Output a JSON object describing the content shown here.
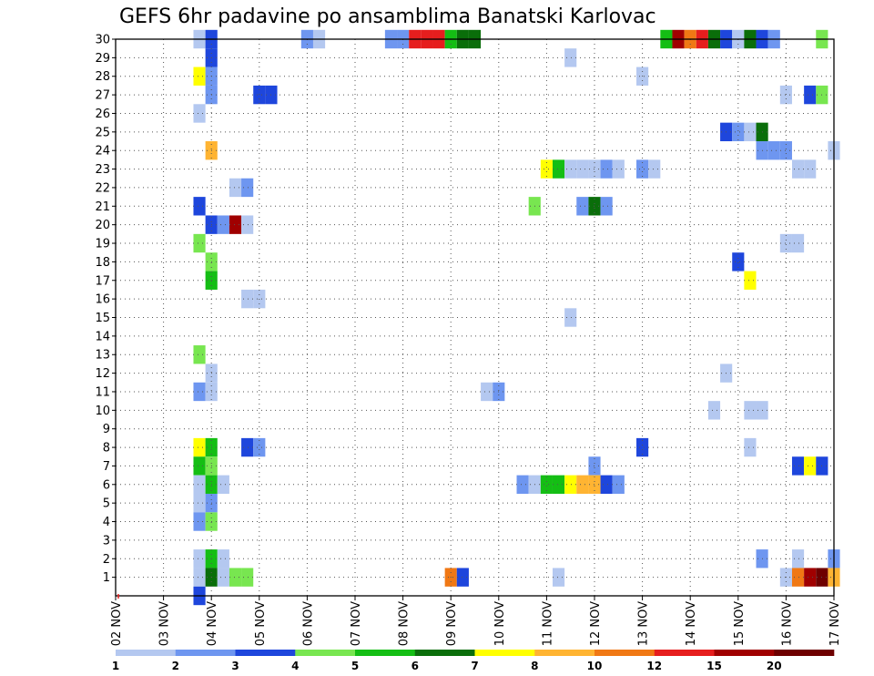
{
  "chart_data": {
    "type": "heatmap",
    "title": "GEFS 6hr padavine po ansamblima Banatski Karlovac",
    "xlabel": "",
    "ylabel": "",
    "x_tick_labels": [
      "02 NOV",
      "03 NOV",
      "04 NOV",
      "05 NOV",
      "06 NOV",
      "07 NOV",
      "08 NOV",
      "09 NOV",
      "10 NOV",
      "11 NOV",
      "12 NOV",
      "13 NOV",
      "14 NOV",
      "15 NOV",
      "16 NOV",
      "17 NOV"
    ],
    "y_tick_labels": [
      "1",
      "2",
      "3",
      "4",
      "5",
      "6",
      "7",
      "8",
      "9",
      "10",
      "11",
      "12",
      "13",
      "14",
      "15",
      "16",
      "17",
      "18",
      "19",
      "20",
      "21",
      "22",
      "23",
      "24",
      "25",
      "26",
      "27",
      "28",
      "29",
      "30"
    ],
    "x_range_steps": [
      0,
      60
    ],
    "y_range_members": [
      0,
      30
    ],
    "steps_per_day": 4,
    "grid": true,
    "colorbar": {
      "colors": [
        "#b4c8f0",
        "#6e96f0",
        "#1e46dc",
        "#78e650",
        "#14be14",
        "#0a6e0a",
        "#ffff00",
        "#ffb432",
        "#f07814",
        "#e61e1e",
        "#a00000",
        "#6e0000"
      ],
      "tick_labels": [
        "1",
        "2",
        "3",
        "4",
        "5",
        "6",
        "7",
        "8",
        "10",
        "12",
        "15",
        "20"
      ]
    },
    "cells": [
      [
        7,
        30,
        0
      ],
      [
        8,
        30,
        2
      ],
      [
        16,
        30,
        1
      ],
      [
        17,
        30,
        0
      ],
      [
        23,
        30,
        1
      ],
      [
        24,
        30,
        1
      ],
      [
        25,
        30,
        9
      ],
      [
        26,
        30,
        9
      ],
      [
        27,
        30,
        9
      ],
      [
        28,
        30,
        4
      ],
      [
        29,
        30,
        5
      ],
      [
        30,
        30,
        5
      ],
      [
        46,
        30,
        4
      ],
      [
        47,
        30,
        10
      ],
      [
        48,
        30,
        8
      ],
      [
        49,
        30,
        9
      ],
      [
        50,
        30,
        5
      ],
      [
        51,
        30,
        2
      ],
      [
        52,
        30,
        0
      ],
      [
        53,
        30,
        5
      ],
      [
        54,
        30,
        2
      ],
      [
        55,
        30,
        1
      ],
      [
        59,
        30,
        3
      ],
      [
        8,
        29,
        2
      ],
      [
        38,
        29,
        0
      ],
      [
        7,
        28,
        6
      ],
      [
        8,
        28,
        1
      ],
      [
        44,
        28,
        0
      ],
      [
        8,
        27,
        1
      ],
      [
        12,
        27,
        2
      ],
      [
        13,
        27,
        2
      ],
      [
        56,
        27,
        0
      ],
      [
        58,
        27,
        2
      ],
      [
        59,
        27,
        3
      ],
      [
        7,
        26,
        0
      ],
      [
        51,
        25,
        2
      ],
      [
        52,
        25,
        1
      ],
      [
        53,
        25,
        0
      ],
      [
        54,
        25,
        5
      ],
      [
        8,
        24,
        7
      ],
      [
        54,
        24,
        1
      ],
      [
        55,
        24,
        1
      ],
      [
        56,
        24,
        1
      ],
      [
        60,
        24,
        0
      ],
      [
        36,
        23,
        6
      ],
      [
        37,
        23,
        4
      ],
      [
        38,
        23,
        0
      ],
      [
        39,
        23,
        0
      ],
      [
        40,
        23,
        0
      ],
      [
        41,
        23,
        1
      ],
      [
        42,
        23,
        0
      ],
      [
        44,
        23,
        1
      ],
      [
        45,
        23,
        0
      ],
      [
        57,
        23,
        0
      ],
      [
        58,
        23,
        0
      ],
      [
        10,
        22,
        0
      ],
      [
        11,
        22,
        1
      ],
      [
        35,
        21,
        3
      ],
      [
        39,
        21,
        1
      ],
      [
        40,
        21,
        5
      ],
      [
        41,
        21,
        1
      ],
      [
        7,
        21,
        2
      ],
      [
        8,
        20,
        2
      ],
      [
        9,
        20,
        1
      ],
      [
        10,
        20,
        10
      ],
      [
        11,
        20,
        0
      ],
      [
        7,
        19,
        3
      ],
      [
        56,
        19,
        0
      ],
      [
        57,
        19,
        0
      ],
      [
        8,
        18,
        3
      ],
      [
        52,
        18,
        2
      ],
      [
        8,
        17,
        4
      ],
      [
        53,
        17,
        6
      ],
      [
        11,
        16,
        0
      ],
      [
        12,
        16,
        0
      ],
      [
        38,
        15,
        0
      ],
      [
        7,
        13,
        3
      ],
      [
        8,
        12,
        0
      ],
      [
        51,
        12,
        0
      ],
      [
        7,
        11,
        1
      ],
      [
        8,
        11,
        0
      ],
      [
        31,
        11,
        0
      ],
      [
        32,
        11,
        1
      ],
      [
        50,
        10,
        0
      ],
      [
        53,
        10,
        0
      ],
      [
        54,
        10,
        0
      ],
      [
        7,
        8,
        6
      ],
      [
        8,
        8,
        4
      ],
      [
        11,
        8,
        2
      ],
      [
        12,
        8,
        1
      ],
      [
        44,
        8,
        2
      ],
      [
        53,
        8,
        0
      ],
      [
        7,
        7,
        4
      ],
      [
        8,
        7,
        3
      ],
      [
        40,
        7,
        1
      ],
      [
        57,
        7,
        2
      ],
      [
        58,
        7,
        6
      ],
      [
        59,
        7,
        2
      ],
      [
        7,
        6,
        0
      ],
      [
        8,
        6,
        4
      ],
      [
        9,
        6,
        0
      ],
      [
        34,
        6,
        1
      ],
      [
        35,
        6,
        0
      ],
      [
        36,
        6,
        4
      ],
      [
        37,
        6,
        4
      ],
      [
        38,
        6,
        6
      ],
      [
        39,
        6,
        7
      ],
      [
        40,
        6,
        7
      ],
      [
        41,
        6,
        2
      ],
      [
        42,
        6,
        1
      ],
      [
        7,
        5,
        0
      ],
      [
        8,
        5,
        1
      ],
      [
        7,
        4,
        1
      ],
      [
        8,
        4,
        3
      ],
      [
        7,
        2,
        0
      ],
      [
        8,
        2,
        4
      ],
      [
        9,
        2,
        0
      ],
      [
        54,
        2,
        1
      ],
      [
        57,
        2,
        0
      ],
      [
        60,
        2,
        1
      ],
      [
        7,
        1,
        0
      ],
      [
        8,
        1,
        5
      ],
      [
        9,
        1,
        0
      ],
      [
        10,
        1,
        3
      ],
      [
        11,
        1,
        3
      ],
      [
        28,
        1,
        8
      ],
      [
        29,
        1,
        2
      ],
      [
        37,
        1,
        0
      ],
      [
        56,
        1,
        0
      ],
      [
        57,
        1,
        8
      ],
      [
        58,
        1,
        10
      ],
      [
        59,
        1,
        11
      ],
      [
        60,
        1,
        7
      ],
      [
        7,
        0,
        2
      ]
    ]
  }
}
